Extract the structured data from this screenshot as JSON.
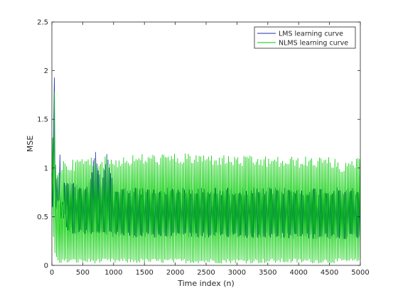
{
  "chart_data": {
    "type": "line",
    "title": "",
    "xlabel": "Time index (n)",
    "ylabel": "MSE",
    "xlim": [
      0,
      5000
    ],
    "ylim": [
      0,
      2.5
    ],
    "xticks": [
      0,
      500,
      1000,
      1500,
      2000,
      2500,
      3000,
      3500,
      4000,
      4500,
      5000
    ],
    "yticks": [
      0,
      0.5,
      1,
      1.5,
      2,
      2.5
    ],
    "xtick_labels": [
      "0",
      "500",
      "1000",
      "1500",
      "2000",
      "2500",
      "3000",
      "3500",
      "4000",
      "4500",
      "5000"
    ],
    "ytick_labels": [
      "0",
      "0.5",
      "1",
      "1.5",
      "2",
      "2.5"
    ],
    "grid": false,
    "legend_position": "top-right",
    "series": [
      {
        "name": "LMS learning curve",
        "color": "#1f2fb0",
        "x": [
          0,
          10,
          25,
          40,
          55,
          70,
          100,
          130,
          160,
          200,
          250,
          300,
          400,
          500,
          600,
          700,
          800,
          900,
          1000,
          1500,
          2000,
          2500,
          3000,
          3500,
          4000,
          4500,
          5000
        ],
        "y_upper": [
          1.05,
          0.6,
          1.4,
          2.25,
          1.7,
          1.0,
          1.0,
          1.25,
          0.95,
          0.92,
          0.9,
          0.88,
          0.85,
          0.83,
          0.82,
          1.22,
          0.82,
          1.18,
          0.81,
          0.8,
          0.8,
          0.8,
          0.8,
          0.8,
          0.8,
          0.8,
          0.8
        ],
        "y_lower": [
          0.9,
          0.5,
          0.45,
          0.4,
          0.42,
          0.45,
          0.4,
          0.38,
          0.36,
          0.35,
          0.34,
          0.33,
          0.32,
          0.31,
          0.3,
          0.3,
          0.29,
          0.29,
          0.29,
          0.28,
          0.28,
          0.28,
          0.28,
          0.28,
          0.27,
          0.27,
          0.27
        ]
      },
      {
        "name": "NLMS learning curve",
        "color": "#00cc00",
        "x": [
          0,
          10,
          25,
          40,
          55,
          70,
          100,
          150,
          200,
          300,
          400,
          500,
          1000,
          1500,
          2000,
          2500,
          3000,
          3500,
          4000,
          4500,
          4800,
          5000
        ],
        "y_upper": [
          0.95,
          1.3,
          1.6,
          1.85,
          1.2,
          1.0,
          1.05,
          1.05,
          1.1,
          1.08,
          1.1,
          1.12,
          1.12,
          1.15,
          1.15,
          1.15,
          1.13,
          1.12,
          1.12,
          1.12,
          1.05,
          1.17
        ],
        "y_lower": [
          0.5,
          0.3,
          0.25,
          0.15,
          0.1,
          0.05,
          0.02,
          0.02,
          0.02,
          0.02,
          0.02,
          0.02,
          0.02,
          0.02,
          0.02,
          0.02,
          0.02,
          0.02,
          0.02,
          0.02,
          0.02,
          0.02
        ]
      }
    ]
  }
}
